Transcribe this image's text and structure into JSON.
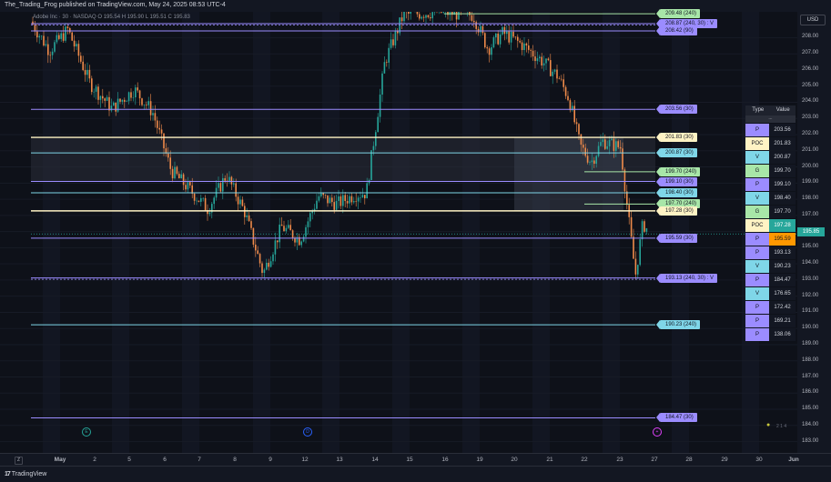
{
  "header": {
    "published": "The_Trading_Frog published on TradingView.com, May 24, 2025 08:53 UTC-4",
    "symbol_line": "Adobe Inc · 30 · NASDAQ  O 195.54  H 195.90  L 195.51  C 195.83"
  },
  "currency": "USD",
  "last_price": "195.85",
  "colors": {
    "P": "#9b8cff",
    "POC": "#fff3c4",
    "V": "#7fd6e8",
    "G": "#a8e6a8",
    "last": "#26a69a",
    "highlight": "#ff9800",
    "bull": "#26a69a",
    "bear": "#ef8a4a"
  },
  "chart_data": {
    "type": "candlestick-with-levels",
    "x_ticks": [
      "May",
      "2",
      "5",
      "6",
      "7",
      "8",
      "9",
      "12",
      "13",
      "14",
      "15",
      "16",
      "19",
      "20",
      "21",
      "22",
      "23",
      "27",
      "28",
      "29",
      "30",
      "Jun"
    ],
    "y_ticks": [
      "208.00",
      "207.00",
      "206.00",
      "205.00",
      "204.00",
      "203.00",
      "202.00",
      "201.00",
      "200.00",
      "199.00",
      "198.00",
      "197.00",
      "196.00",
      "195.00",
      "194.00",
      "193.00",
      "192.00",
      "191.00",
      "190.00",
      "189.00",
      "188.00",
      "187.00",
      "186.00",
      "185.00",
      "184.00",
      "183.00"
    ],
    "ylim": [
      182.3,
      209.6
    ],
    "levels": [
      {
        "price": 209.48,
        "label": "209.48 (240)",
        "kind": "G"
      },
      {
        "price": 208.87,
        "label": "208.87 (240, 30)  : V",
        "kind": "P"
      },
      {
        "price": 208.42,
        "label": "208.42 (90)",
        "kind": "P"
      },
      {
        "price": 203.56,
        "label": "203.56 (30)",
        "kind": "P"
      },
      {
        "price": 201.83,
        "label": "201.83 (30)",
        "kind": "POC"
      },
      {
        "price": 200.87,
        "label": "200.87 (30)",
        "kind": "V"
      },
      {
        "price": 199.7,
        "label": "199.70 (240)",
        "kind": "G"
      },
      {
        "price": 199.1,
        "label": "199.10 (30)",
        "kind": "P"
      },
      {
        "price": 198.4,
        "label": "198.40 (30)",
        "kind": "V"
      },
      {
        "price": 197.7,
        "label": "197.70 (240)",
        "kind": "G"
      },
      {
        "price": 197.28,
        "label": "197.28 (30)",
        "kind": "POC"
      },
      {
        "price": 195.59,
        "label": "195.59 (30)",
        "kind": "P"
      },
      {
        "price": 193.13,
        "label": "193.13 (240, 30)  : V",
        "kind": "P"
      },
      {
        "price": 190.23,
        "label": "190.23 (240)",
        "kind": "V"
      },
      {
        "price": 184.47,
        "label": "184.47 (30)",
        "kind": "P"
      }
    ],
    "price_path": [
      {
        "x": 0.0,
        "y": 209.0
      },
      {
        "x": 0.5,
        "y": 207.2
      },
      {
        "x": 1.0,
        "y": 208.5
      },
      {
        "x": 1.6,
        "y": 205.2
      },
      {
        "x": 2.2,
        "y": 203.6
      },
      {
        "x": 2.8,
        "y": 204.8
      },
      {
        "x": 3.3,
        "y": 203.4
      },
      {
        "x": 3.8,
        "y": 199.8
      },
      {
        "x": 4.3,
        "y": 198.6
      },
      {
        "x": 4.8,
        "y": 197.4
      },
      {
        "x": 5.3,
        "y": 199.5
      },
      {
        "x": 5.8,
        "y": 197.2
      },
      {
        "x": 6.3,
        "y": 193.4
      },
      {
        "x": 6.8,
        "y": 196.3
      },
      {
        "x": 7.3,
        "y": 195.5
      },
      {
        "x": 7.8,
        "y": 198.2
      },
      {
        "x": 8.3,
        "y": 197.7
      },
      {
        "x": 8.8,
        "y": 198.3
      },
      {
        "x": 9.1,
        "y": 198.4
      },
      {
        "x": 9.6,
        "y": 206.5
      },
      {
        "x": 10.1,
        "y": 209.4
      },
      {
        "x": 11.0,
        "y": 209.6
      },
      {
        "x": 12.0,
        "y": 209.4
      },
      {
        "x": 12.4,
        "y": 207.3
      },
      {
        "x": 12.8,
        "y": 208.3
      },
      {
        "x": 13.3,
        "y": 207.6
      },
      {
        "x": 13.8,
        "y": 206.7
      },
      {
        "x": 14.3,
        "y": 205.6
      },
      {
        "x": 14.6,
        "y": 204.2
      },
      {
        "x": 14.9,
        "y": 201.3
      },
      {
        "x": 15.2,
        "y": 200.3
      },
      {
        "x": 15.5,
        "y": 201.6
      },
      {
        "x": 16.0,
        "y": 201.2
      },
      {
        "x": 16.2,
        "y": 197.0
      },
      {
        "x": 16.4,
        "y": 193.3
      },
      {
        "x": 16.6,
        "y": 196.5
      },
      {
        "x": 16.9,
        "y": 195.6
      },
      {
        "x": 17.0,
        "y": 195.83
      }
    ]
  },
  "level_table": {
    "headers": [
      "Type",
      "Value"
    ],
    "subheader": "...",
    "rows": [
      {
        "type": "P",
        "value": "203.56"
      },
      {
        "type": "POC",
        "value": "201.83"
      },
      {
        "type": "V",
        "value": "200.87"
      },
      {
        "type": "G",
        "value": "199.70"
      },
      {
        "type": "P",
        "value": "199.10"
      },
      {
        "type": "V",
        "value": "198.40"
      },
      {
        "type": "G",
        "value": "197.70"
      },
      {
        "type": "POC",
        "value": "197.28"
      },
      {
        "type": "P",
        "value": "195.59"
      },
      {
        "type": "P",
        "value": "193.13"
      },
      {
        "type": "V",
        "value": "190.23"
      },
      {
        "type": "P",
        "value": "184.47"
      },
      {
        "type": "V",
        "value": "176.65"
      },
      {
        "type": "P",
        "value": "172.42"
      },
      {
        "type": "P",
        "value": "169.21"
      },
      {
        "type": "P",
        "value": "138.06"
      }
    ]
  },
  "events": [
    {
      "glyph": "E",
      "icon": "earnings-icon",
      "x_day": "May"
    },
    {
      "glyph": "D",
      "icon": "dividend-icon",
      "x_day": "12"
    },
    {
      "glyph": "+",
      "icon": "news-icon",
      "x_day": "27"
    }
  ],
  "watermark": "2 1 4",
  "footer": {
    "brand": "TradingView",
    "zoom_button": "Z"
  }
}
